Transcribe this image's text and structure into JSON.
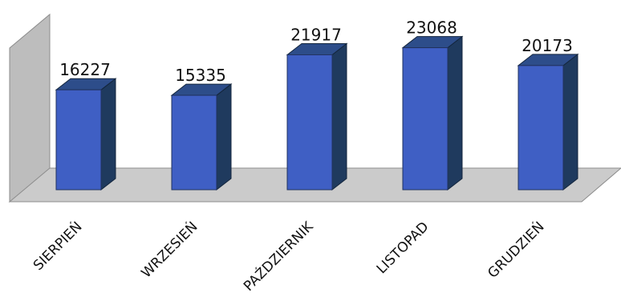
{
  "chart_data": {
    "type": "bar",
    "categories": [
      "SIERPIEŃ",
      "WRZESIEŃ",
      "PAŹDZIERNIK",
      "LISTOPAD",
      "GRUDZIEŃ"
    ],
    "values": [
      16227,
      15335,
      21917,
      23068,
      20173
    ],
    "data_labels": [
      "16227",
      "15335",
      "21917",
      "23068",
      "20173"
    ],
    "style": "3d-column",
    "grid": false,
    "legend": "none",
    "colors": {
      "bar_front": "#3f5fc4",
      "bar_top": "#2d4d8a",
      "bar_side": "#1f3a5e",
      "floor": "#c9c9c9",
      "wall": "#bdbdbd"
    }
  }
}
